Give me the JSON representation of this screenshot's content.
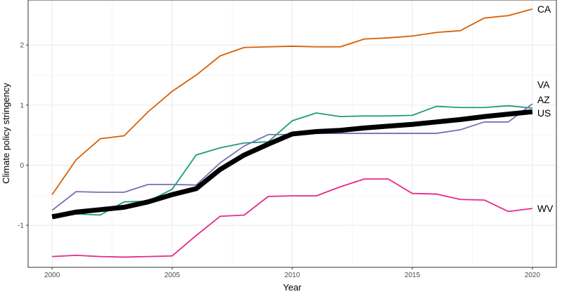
{
  "chart_data": {
    "type": "line",
    "xlabel": "Year",
    "ylabel": "Climate policy stringency",
    "xlim": [
      1999,
      2021
    ],
    "ylim": [
      -1.7,
      2.75
    ],
    "xticks": [
      2000,
      2005,
      2010,
      2015,
      2020
    ],
    "yticks": [
      -1,
      0,
      1,
      2
    ],
    "grid": true,
    "x": [
      2000,
      2001,
      2002,
      2003,
      2004,
      2005,
      2006,
      2007,
      2008,
      2009,
      2010,
      2011,
      2012,
      2013,
      2014,
      2015,
      2016,
      2017,
      2018,
      2019,
      2020
    ],
    "series": [
      {
        "name": "CA",
        "color": "#d95f02",
        "values": [
          -0.49,
          0.09,
          0.44,
          0.49,
          0.89,
          1.23,
          1.5,
          1.82,
          1.96,
          1.97,
          1.98,
          1.97,
          1.97,
          2.1,
          2.12,
          2.15,
          2.21,
          2.24,
          2.45,
          2.49,
          2.6
        ]
      },
      {
        "name": "VA",
        "color": "#1b9e77",
        "values": [
          -0.82,
          -0.81,
          -0.83,
          -0.61,
          -0.6,
          -0.4,
          0.17,
          0.29,
          0.37,
          0.39,
          0.74,
          0.87,
          0.81,
          0.82,
          0.82,
          0.83,
          0.98,
          0.96,
          0.96,
          0.99,
          0.95
        ]
      },
      {
        "name": "AZ",
        "color": "#7570b3",
        "values": [
          -0.75,
          -0.44,
          -0.45,
          -0.45,
          -0.32,
          -0.32,
          -0.33,
          0.04,
          0.32,
          0.51,
          0.51,
          0.53,
          0.53,
          0.53,
          0.53,
          0.53,
          0.53,
          0.59,
          0.72,
          0.72,
          1.02
        ]
      },
      {
        "name": "US",
        "color": "#000000",
        "values": [
          -0.86,
          -0.78,
          -0.74,
          -0.7,
          -0.61,
          -0.49,
          -0.39,
          -0.07,
          0.17,
          0.35,
          0.52,
          0.56,
          0.58,
          0.62,
          0.65,
          0.68,
          0.72,
          0.76,
          0.81,
          0.85,
          0.89
        ]
      },
      {
        "name": "WV",
        "color": "#e7298a",
        "values": [
          -1.52,
          -1.5,
          -1.52,
          -1.53,
          -1.52,
          -1.51,
          -1.17,
          -0.85,
          -0.83,
          -0.52,
          -0.51,
          -0.51,
          -0.36,
          -0.23,
          -0.23,
          -0.47,
          -0.48,
          -0.57,
          -0.58,
          -0.77,
          -0.72
        ]
      }
    ],
    "labels": [
      {
        "text": "CA",
        "y": 2.6
      },
      {
        "text": "VA",
        "y": 1.34
      },
      {
        "text": "AZ",
        "y": 1.09
      },
      {
        "text": "US",
        "y": 0.87
      },
      {
        "text": "WV",
        "y": -0.72
      }
    ]
  }
}
